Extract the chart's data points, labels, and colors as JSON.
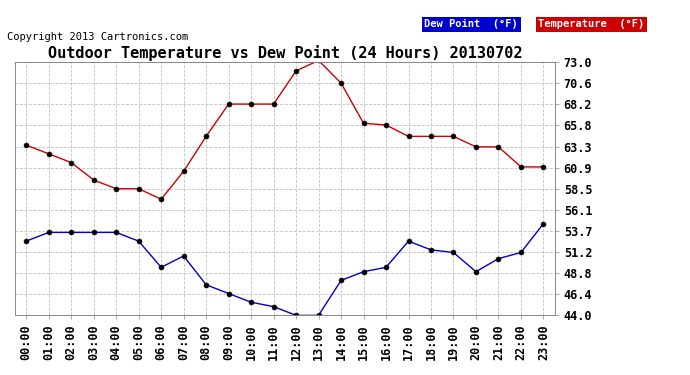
{
  "title": "Outdoor Temperature vs Dew Point (24 Hours) 20130702",
  "copyright": "Copyright 2013 Cartronics.com",
  "x_labels": [
    "00:00",
    "01:00",
    "02:00",
    "03:00",
    "04:00",
    "05:00",
    "06:00",
    "07:00",
    "08:00",
    "09:00",
    "10:00",
    "11:00",
    "12:00",
    "13:00",
    "14:00",
    "15:00",
    "16:00",
    "17:00",
    "18:00",
    "19:00",
    "20:00",
    "21:00",
    "22:00",
    "23:00"
  ],
  "temperature": [
    63.5,
    62.5,
    61.5,
    59.5,
    58.5,
    58.5,
    57.3,
    60.5,
    64.5,
    68.2,
    68.2,
    68.2,
    72.0,
    73.2,
    70.6,
    66.0,
    65.8,
    64.5,
    64.5,
    64.5,
    63.3,
    63.3,
    61.0,
    61.0
  ],
  "dew_point": [
    52.5,
    53.5,
    53.5,
    53.5,
    53.5,
    52.5,
    49.5,
    50.8,
    47.5,
    46.5,
    45.5,
    45.0,
    44.0,
    44.0,
    48.0,
    49.0,
    49.5,
    52.5,
    51.5,
    51.2,
    49.0,
    50.5,
    51.2,
    54.5
  ],
  "ylim_min": 44.0,
  "ylim_max": 73.0,
  "yticks": [
    44.0,
    46.4,
    48.8,
    51.2,
    53.7,
    56.1,
    58.5,
    60.9,
    63.3,
    65.8,
    68.2,
    70.6,
    73.0
  ],
  "temp_color": "#cc0000",
  "dew_color": "#0000cc",
  "background_color": "#ffffff",
  "grid_color": "#bbbbbb",
  "marker_size": 3.5,
  "legend_dew_bg": "#0000cc",
  "legend_temp_bg": "#cc0000",
  "legend_text_color": "#ffffff",
  "title_fontsize": 11,
  "tick_fontsize": 8.5,
  "copyright_fontsize": 7.5
}
